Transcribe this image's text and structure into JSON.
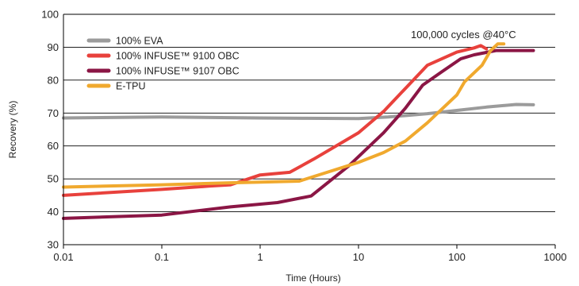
{
  "chart_data": {
    "type": "line",
    "xscale": "log",
    "xlabel": "Time (Hours)",
    "ylabel": "Recovery (%)",
    "xlim": [
      0.01,
      1000
    ],
    "ylim": [
      30,
      100
    ],
    "xticks": [
      0.01,
      0.1,
      1,
      10,
      100,
      1000
    ],
    "xtick_labels": [
      "0.01",
      "0.1",
      "1",
      "10",
      "100",
      "1000"
    ],
    "yticks": [
      30,
      40,
      50,
      60,
      70,
      80,
      90,
      100
    ],
    "ytick_labels": [
      "30",
      "40",
      "50",
      "60",
      "70",
      "80",
      "90",
      "100"
    ],
    "grid": "horizontal",
    "legend_position": "top-left",
    "annotation": "100,000 cycles @40°C",
    "series": [
      {
        "name": "100% EVA",
        "color": "#9b9b9b",
        "points": [
          [
            0.01,
            68.5
          ],
          [
            0.1,
            68.8
          ],
          [
            0.5,
            68.6
          ],
          [
            1,
            68.5
          ],
          [
            3,
            68.4
          ],
          [
            10,
            68.3
          ],
          [
            20,
            68.8
          ],
          [
            50,
            69.8
          ],
          [
            100,
            70.8
          ],
          [
            200,
            71.8
          ],
          [
            400,
            72.6
          ],
          [
            600,
            72.5
          ]
        ]
      },
      {
        "name": "100% INFUSE™ 9100 OBC",
        "color": "#e8413c",
        "points": [
          [
            0.01,
            45
          ],
          [
            0.1,
            46.8
          ],
          [
            0.3,
            47.8
          ],
          [
            0.5,
            48.2
          ],
          [
            1,
            51.2
          ],
          [
            2,
            52
          ],
          [
            3.5,
            56
          ],
          [
            10,
            64
          ],
          [
            18,
            70.5
          ],
          [
            30,
            77.5
          ],
          [
            50,
            84.5
          ],
          [
            100,
            88.5
          ],
          [
            150,
            89.8
          ],
          [
            175,
            90.5
          ],
          [
            200,
            89.5
          ]
        ]
      },
      {
        "name": "100% INFUSE™ 9107 OBC",
        "color": "#8b1645",
        "points": [
          [
            0.01,
            38
          ],
          [
            0.1,
            39
          ],
          [
            0.5,
            41.5
          ],
          [
            1,
            42.3
          ],
          [
            1.5,
            42.8
          ],
          [
            3.3,
            44.8
          ],
          [
            8,
            54
          ],
          [
            18,
            64
          ],
          [
            30,
            71.5
          ],
          [
            45,
            78.5
          ],
          [
            70,
            82.5
          ],
          [
            110,
            86.5
          ],
          [
            150,
            87.7
          ],
          [
            250,
            89
          ],
          [
            400,
            89
          ],
          [
            600,
            89
          ]
        ]
      },
      {
        "name": "E-TPU",
        "color": "#f0a92e",
        "points": [
          [
            0.01,
            47.5
          ],
          [
            0.1,
            48.2
          ],
          [
            0.5,
            48.8
          ],
          [
            1,
            49
          ],
          [
            2.5,
            49.3
          ],
          [
            10,
            55
          ],
          [
            18,
            58
          ],
          [
            30,
            61.5
          ],
          [
            50,
            67
          ],
          [
            100,
            75.5
          ],
          [
            120,
            79.5
          ],
          [
            180,
            84.5
          ],
          [
            220,
            89
          ],
          [
            260,
            91
          ],
          [
            300,
            91
          ]
        ]
      }
    ]
  }
}
